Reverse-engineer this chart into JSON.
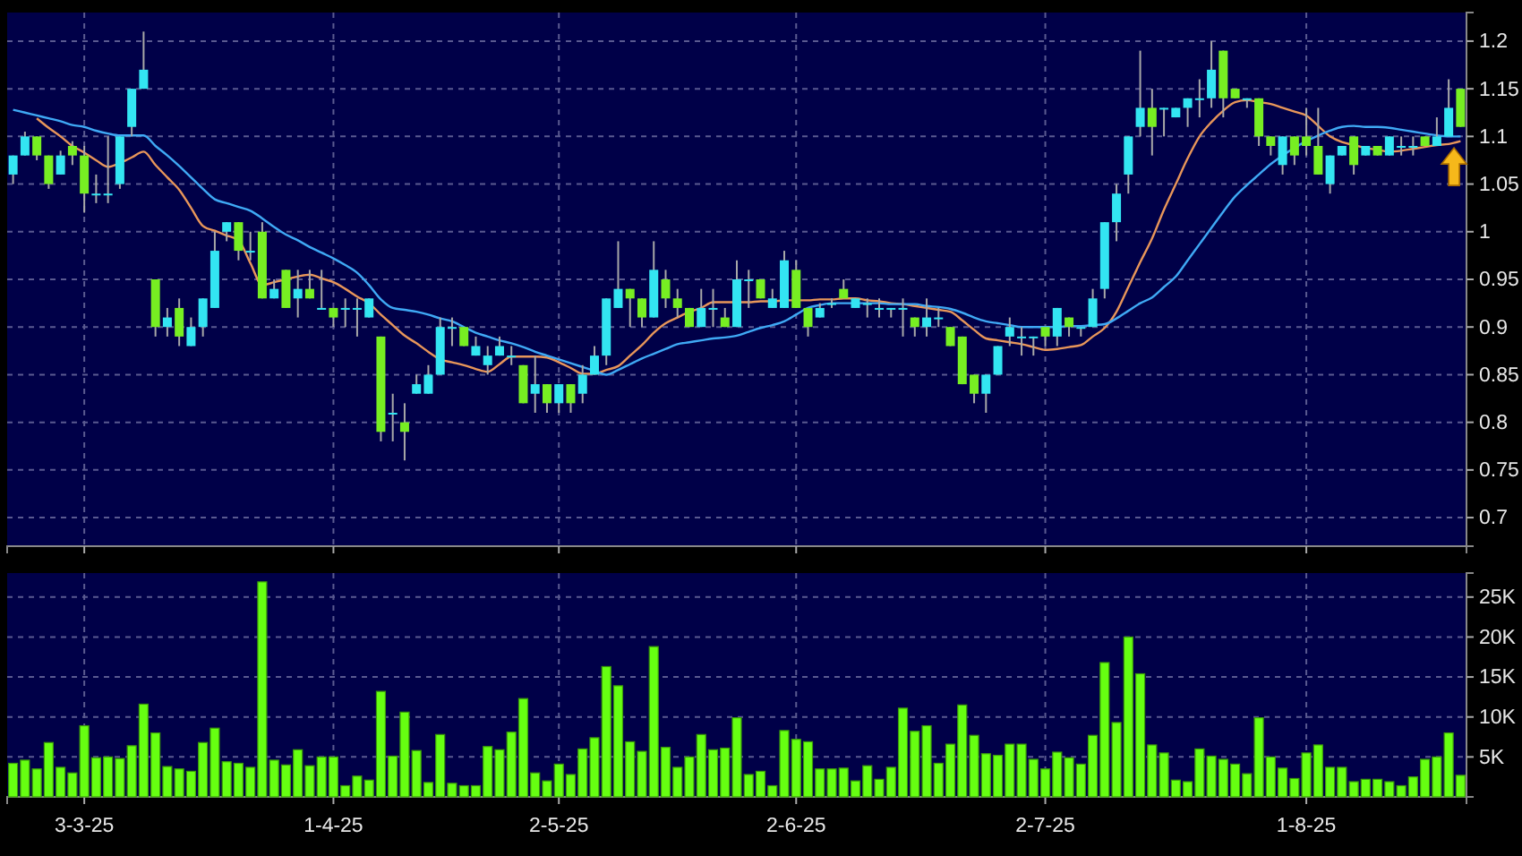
{
  "chart_data": [
    {
      "type": "candlestick",
      "categories": [
        null,
        null,
        null,
        null,
        null,
        null,
        "3-3-25",
        null,
        null,
        null,
        null,
        null,
        null,
        null,
        null,
        null,
        null,
        null,
        null,
        null,
        null,
        null,
        null,
        null,
        null,
        null,
        null,
        "1-4-25",
        null,
        null,
        null,
        null,
        null,
        null,
        null,
        null,
        null,
        null,
        null,
        null,
        null,
        null,
        null,
        null,
        null,
        null,
        "2-5-25",
        null,
        null,
        null,
        null,
        null,
        null,
        null,
        null,
        null,
        null,
        null,
        null,
        null,
        null,
        null,
        null,
        null,
        null,
        null,
        "2-6-25",
        null,
        null,
        null,
        null,
        null,
        null,
        null,
        null,
        null,
        null,
        null,
        null,
        null,
        null,
        null,
        null,
        null,
        null,
        null,
        null,
        "2-7-25",
        null,
        null,
        null,
        null,
        null,
        null,
        null,
        null,
        null,
        null,
        null,
        null,
        null,
        null,
        null,
        null,
        null,
        null,
        null,
        null,
        null,
        "1-8-25",
        null,
        null,
        null,
        null,
        null,
        null,
        null,
        null,
        null,
        null,
        null,
        null,
        null
      ],
      "ylim": [
        0.67,
        1.23
      ],
      "yticks": [
        0.7,
        0.75,
        0.8,
        0.85,
        0.9,
        0.95,
        1,
        1.05,
        1.1,
        1.15,
        1.2
      ],
      "grid": true,
      "tick_labels": "y",
      "series": [
        {
          "type": "candlestick",
          "color": "#33e5f2",
          "ohlc": [
            [
              1.06,
              1.08,
              1.05,
              1.08
            ],
            [
              1.08,
              1.105,
              1.08,
              1.1
            ],
            null,
            null,
            [
              1.06,
              1.085,
              1.06,
              1.08
            ],
            null,
            null,
            [
              1.04,
              1.06,
              1.03,
              1.04
            ],
            [
              1.04,
              1.1,
              1.03,
              1.04
            ],
            [
              1.05,
              1.1,
              1.045,
              1.1
            ],
            [
              1.11,
              1.15,
              1.1,
              1.15
            ],
            [
              1.15,
              1.21,
              1.15,
              1.17
            ],
            null,
            [
              0.9,
              0.92,
              0.89,
              0.91
            ],
            null,
            [
              0.88,
              0.91,
              0.88,
              0.9
            ],
            [
              0.9,
              0.93,
              0.89,
              0.93
            ],
            [
              0.92,
              1.0,
              0.92,
              0.98
            ],
            [
              1.0,
              1.01,
              0.99,
              1.01
            ],
            null,
            [
              0.98,
              1.0,
              0.97,
              0.98
            ],
            null,
            [
              0.93,
              0.95,
              0.93,
              0.94
            ],
            null,
            [
              0.93,
              0.96,
              0.91,
              0.94
            ],
            null,
            [
              0.92,
              0.96,
              0.92,
              0.92
            ],
            null,
            [
              0.92,
              0.93,
              0.9,
              0.92
            ],
            [
              0.92,
              0.93,
              0.89,
              0.92
            ],
            [
              0.91,
              0.93,
              0.91,
              0.93
            ],
            null,
            [
              0.81,
              0.83,
              0.78,
              0.81
            ],
            null,
            [
              0.83,
              0.85,
              0.83,
              0.84
            ],
            [
              0.83,
              0.86,
              0.83,
              0.85
            ],
            [
              0.85,
              0.91,
              0.85,
              0.9
            ],
            [
              0.9,
              0.91,
              0.88,
              0.9
            ],
            null,
            [
              0.87,
              0.89,
              0.87,
              0.88
            ],
            [
              0.86,
              0.88,
              0.85,
              0.87
            ],
            [
              0.87,
              0.89,
              0.87,
              0.88
            ],
            [
              0.87,
              0.88,
              0.86,
              0.87
            ],
            null,
            [
              0.83,
              0.87,
              0.81,
              0.84
            ],
            null,
            [
              0.82,
              0.84,
              0.81,
              0.84
            ],
            null,
            [
              0.83,
              0.86,
              0.82,
              0.85
            ],
            [
              0.85,
              0.88,
              0.85,
              0.87
            ],
            [
              0.87,
              0.93,
              0.86,
              0.93
            ],
            [
              0.92,
              0.99,
              0.92,
              0.94
            ],
            null,
            null,
            [
              0.91,
              0.99,
              0.91,
              0.96
            ],
            null,
            null,
            null,
            [
              0.9,
              0.94,
              0.9,
              0.92
            ],
            [
              0.92,
              0.94,
              0.9,
              0.92
            ],
            null,
            [
              0.9,
              0.97,
              0.9,
              0.95
            ],
            [
              0.95,
              0.96,
              0.92,
              0.95
            ],
            null,
            [
              0.92,
              0.94,
              0.92,
              0.93
            ],
            [
              0.92,
              0.98,
              0.92,
              0.97
            ],
            null,
            null,
            [
              0.91,
              0.925,
              0.91,
              0.92
            ],
            [
              0.925,
              0.93,
              0.92,
              0.925
            ],
            null,
            [
              0.92,
              0.93,
              0.92,
              0.93
            ],
            [
              0.925,
              0.93,
              0.91,
              0.925
            ],
            [
              0.92,
              0.93,
              0.91,
              0.92
            ],
            [
              0.92,
              0.92,
              0.91,
              0.92
            ],
            [
              0.92,
              0.93,
              0.89,
              0.92
            ],
            null,
            [
              0.9,
              0.93,
              0.89,
              0.91
            ],
            [
              0.91,
              0.92,
              0.9,
              0.91
            ],
            null,
            null,
            null,
            [
              0.83,
              0.85,
              0.81,
              0.85
            ],
            [
              0.85,
              0.88,
              0.85,
              0.88
            ],
            [
              0.89,
              0.91,
              0.88,
              0.9
            ],
            [
              0.89,
              0.9,
              0.87,
              0.89
            ],
            [
              0.89,
              0.89,
              0.87,
              0.89
            ],
            null,
            [
              0.89,
              0.92,
              0.88,
              0.92
            ],
            null,
            [
              0.9,
              0.9,
              0.89,
              0.9
            ],
            [
              0.9,
              0.94,
              0.9,
              0.93
            ],
            [
              0.94,
              1.01,
              0.93,
              1.01
            ],
            [
              1.01,
              1.05,
              0.99,
              1.04
            ],
            [
              1.06,
              1.1,
              1.04,
              1.1
            ],
            [
              1.11,
              1.19,
              1.1,
              1.13
            ],
            null,
            [
              1.13,
              1.13,
              1.1,
              1.13
            ],
            [
              1.12,
              1.13,
              1.12,
              1.13
            ],
            [
              1.13,
              1.14,
              1.11,
              1.14
            ],
            [
              1.14,
              1.16,
              1.12,
              1.14
            ],
            [
              1.14,
              1.2,
              1.13,
              1.17
            ],
            null,
            null,
            [
              1.14,
              1.14,
              1.13,
              1.14
            ],
            null,
            null,
            [
              1.07,
              1.1,
              1.06,
              1.1
            ],
            null,
            null,
            null,
            [
              1.05,
              1.08,
              1.04,
              1.08
            ],
            [
              1.08,
              1.09,
              1.08,
              1.09
            ],
            null,
            [
              1.08,
              1.09,
              1.08,
              1.09
            ],
            null,
            [
              1.08,
              1.1,
              1.08,
              1.1
            ],
            [
              1.09,
              1.1,
              1.08,
              1.09
            ],
            [
              1.09,
              1.1,
              1.08,
              1.09
            ],
            null,
            [
              1.09,
              1.12,
              1.09,
              1.1
            ],
            [
              1.1,
              1.16,
              1.1,
              1.13
            ],
            null
          ]
        },
        {
          "type": "candlestick",
          "color": "#77ee22",
          "ohlc": [
            null,
            null,
            [
              1.1,
              1.1,
              1.075,
              1.08
            ],
            [
              1.08,
              1.08,
              1.045,
              1.05
            ],
            null,
            [
              1.09,
              1.095,
              1.07,
              1.08
            ],
            [
              1.08,
              1.09,
              1.02,
              1.04
            ],
            null,
            null,
            null,
            null,
            null,
            [
              0.95,
              0.95,
              0.89,
              0.9
            ],
            null,
            [
              0.92,
              0.93,
              0.88,
              0.89
            ],
            null,
            null,
            null,
            null,
            [
              1.01,
              1.01,
              0.97,
              0.98
            ],
            null,
            [
              1.0,
              1.01,
              0.93,
              0.93
            ],
            null,
            [
              0.96,
              0.96,
              0.92,
              0.92
            ],
            null,
            [
              0.94,
              0.96,
              0.93,
              0.93
            ],
            null,
            [
              0.92,
              0.92,
              0.9,
              0.91
            ],
            null,
            null,
            null,
            [
              0.89,
              0.89,
              0.78,
              0.79
            ],
            null,
            [
              0.8,
              0.82,
              0.76,
              0.79
            ],
            null,
            null,
            null,
            null,
            [
              0.9,
              0.9,
              0.88,
              0.88
            ],
            null,
            null,
            null,
            null,
            [
              0.86,
              0.86,
              0.82,
              0.82
            ],
            null,
            [
              0.84,
              0.84,
              0.81,
              0.82
            ],
            null,
            [
              0.84,
              0.84,
              0.81,
              0.82
            ],
            null,
            null,
            null,
            null,
            [
              0.94,
              0.94,
              0.9,
              0.93
            ],
            [
              0.93,
              0.93,
              0.9,
              0.91
            ],
            null,
            [
              0.95,
              0.96,
              0.92,
              0.93
            ],
            [
              0.93,
              0.94,
              0.91,
              0.92
            ],
            [
              0.92,
              0.92,
              0.9,
              0.9
            ],
            null,
            null,
            [
              0.91,
              0.92,
              0.9,
              0.9
            ],
            null,
            null,
            [
              0.95,
              0.95,
              0.93,
              0.93
            ],
            null,
            null,
            [
              0.96,
              0.97,
              0.92,
              0.92
            ],
            [
              0.92,
              0.92,
              0.89,
              0.9
            ],
            null,
            null,
            [
              0.94,
              0.95,
              0.93,
              0.93
            ],
            null,
            null,
            null,
            null,
            null,
            [
              0.91,
              0.91,
              0.89,
              0.9
            ],
            null,
            null,
            [
              0.9,
              0.9,
              0.88,
              0.88
            ],
            [
              0.89,
              0.89,
              0.84,
              0.84
            ],
            [
              0.85,
              0.85,
              0.82,
              0.83
            ],
            null,
            null,
            null,
            null,
            null,
            [
              0.9,
              0.9,
              0.88,
              0.89
            ],
            null,
            [
              0.91,
              0.91,
              0.89,
              0.9
            ],
            null,
            null,
            null,
            null,
            null,
            null,
            [
              1.13,
              1.15,
              1.08,
              1.11
            ],
            null,
            null,
            null,
            null,
            null,
            [
              1.19,
              1.19,
              1.12,
              1.14
            ],
            [
              1.15,
              1.15,
              1.14,
              1.14
            ],
            null,
            [
              1.14,
              1.14,
              1.09,
              1.1
            ],
            [
              1.1,
              1.1,
              1.08,
              1.09
            ],
            null,
            [
              1.1,
              1.1,
              1.07,
              1.08
            ],
            [
              1.1,
              1.13,
              1.08,
              1.09
            ],
            [
              1.09,
              1.13,
              1.06,
              1.06
            ],
            null,
            null,
            [
              1.1,
              1.1,
              1.06,
              1.07
            ],
            null,
            [
              1.09,
              1.09,
              1.08,
              1.08
            ],
            null,
            null,
            null,
            [
              1.1,
              1.1,
              1.09,
              1.09
            ],
            null,
            null,
            [
              1.15,
              1.15,
              1.11,
              1.11
            ]
          ]
        },
        {
          "type": "line",
          "color": "#e8965a",
          "values": [
            null,
            null,
            1.119,
            1.109,
            1.1,
            1.09,
            1.083,
            1.075,
            1.068,
            1.072,
            1.078,
            1.084,
            1.07,
            1.057,
            1.044,
            1.025,
            1.006,
            1.001,
            0.996,
            0.991,
            0.967,
            0.944,
            0.947,
            0.95,
            0.953,
            0.955,
            0.951,
            0.947,
            0.94,
            0.932,
            0.925,
            0.913,
            0.902,
            0.891,
            0.883,
            0.874,
            0.866,
            0.863,
            0.86,
            0.856,
            0.853,
            0.861,
            0.869,
            0.869,
            0.869,
            0.868,
            0.863,
            0.857,
            0.851,
            0.851,
            0.855,
            0.859,
            0.87,
            0.881,
            0.894,
            0.904,
            0.91,
            0.916,
            0.92,
            0.926,
            0.926,
            0.926,
            0.926,
            0.927,
            0.927,
            0.928,
            0.928,
            0.928,
            0.929,
            0.929,
            0.93,
            0.93,
            0.928,
            0.927,
            0.925,
            0.924,
            0.922,
            0.92,
            0.918,
            0.916,
            0.907,
            0.897,
            0.888,
            0.886,
            0.884,
            0.882,
            0.879,
            0.876,
            0.877,
            0.879,
            0.881,
            0.89,
            0.899,
            0.916,
            0.942,
            0.968,
            0.993,
            1.023,
            1.05,
            1.077,
            1.1,
            1.115,
            1.127,
            1.136,
            1.138,
            1.136,
            1.134,
            1.13,
            1.126,
            1.122,
            1.111,
            1.1,
            1.094,
            1.091,
            1.088,
            1.086,
            1.084,
            1.085,
            1.087,
            1.089,
            1.091,
            1.092,
            1.095
          ]
        },
        {
          "type": "line",
          "color": "#3fa9f5",
          "values": [
            1.128,
            1.125,
            1.122,
            1.119,
            1.116,
            1.112,
            1.11,
            1.106,
            1.103,
            1.101,
            1.101,
            1.101,
            1.09,
            1.08,
            1.069,
            1.057,
            1.045,
            1.034,
            1.03,
            1.026,
            1.022,
            1.014,
            1.005,
            0.997,
            0.991,
            0.984,
            0.978,
            0.972,
            0.965,
            0.957,
            0.944,
            0.929,
            0.92,
            0.918,
            0.916,
            0.913,
            0.909,
            0.906,
            0.9,
            0.894,
            0.89,
            0.886,
            0.883,
            0.879,
            0.874,
            0.87,
            0.866,
            0.862,
            0.858,
            0.854,
            0.85,
            0.855,
            0.861,
            0.867,
            0.872,
            0.877,
            0.882,
            0.884,
            0.886,
            0.888,
            0.889,
            0.891,
            0.895,
            0.899,
            0.902,
            0.906,
            0.913,
            0.92,
            0.923,
            0.925,
            0.925,
            0.925,
            0.925,
            0.925,
            0.924,
            0.924,
            0.924,
            0.922,
            0.921,
            0.919,
            0.915,
            0.91,
            0.906,
            0.904,
            0.902,
            0.9,
            0.9,
            0.9,
            0.9,
            0.901,
            0.901,
            0.902,
            0.903,
            0.909,
            0.917,
            0.925,
            0.931,
            0.942,
            0.953,
            0.97,
            0.987,
            1.004,
            1.021,
            1.037,
            1.049,
            1.06,
            1.071,
            1.08,
            1.088,
            1.095,
            1.101,
            1.106,
            1.11,
            1.111,
            1.11,
            1.11,
            1.109,
            1.107,
            1.105,
            1.103,
            1.101,
            1.1,
            1.1
          ]
        }
      ]
    },
    {
      "type": "bar",
      "categories": [
        null,
        null,
        null,
        null,
        null,
        null,
        "3-3-25",
        null,
        null,
        null,
        null,
        null,
        null,
        null,
        null,
        null,
        null,
        null,
        null,
        null,
        null,
        null,
        null,
        null,
        null,
        null,
        null,
        "1-4-25",
        null,
        null,
        null,
        null,
        null,
        null,
        null,
        null,
        null,
        null,
        null,
        null,
        null,
        null,
        null,
        null,
        null,
        null,
        "2-5-25",
        null,
        null,
        null,
        null,
        null,
        null,
        null,
        null,
        null,
        null,
        null,
        null,
        null,
        null,
        null,
        null,
        null,
        null,
        null,
        "2-6-25",
        null,
        null,
        null,
        null,
        null,
        null,
        null,
        null,
        null,
        null,
        null,
        null,
        null,
        null,
        null,
        null,
        null,
        null,
        null,
        null,
        "2-7-25",
        null,
        null,
        null,
        null,
        null,
        null,
        null,
        null,
        null,
        null,
        null,
        null,
        null,
        null,
        null,
        null,
        null,
        null,
        null,
        null,
        null,
        "1-8-25",
        null,
        null,
        null,
        null,
        null,
        null,
        null,
        null,
        null,
        null,
        null,
        null,
        null
      ],
      "values": [
        4200,
        4600,
        3500,
        6800,
        3700,
        3000,
        8900,
        4900,
        5000,
        4800,
        6400,
        11600,
        8000,
        3800,
        3500,
        3200,
        6800,
        8600,
        4400,
        4200,
        3700,
        26900,
        4600,
        4000,
        5900,
        3900,
        5000,
        5000,
        1400,
        2600,
        2100,
        13200,
        5100,
        10600,
        5800,
        1800,
        7800,
        1700,
        1400,
        1400,
        6300,
        5900,
        8100,
        12300,
        3000,
        2000,
        4100,
        2800,
        6000,
        7400,
        16300,
        13900,
        6900,
        5700,
        18800,
        6200,
        3700,
        5000,
        7800,
        5900,
        6100,
        9900,
        2800,
        3200,
        1400,
        8300,
        7200,
        6900,
        3500,
        3500,
        3600,
        2000,
        3900,
        2200,
        3700,
        11100,
        8200,
        8900,
        4200,
        6600,
        11500,
        7700,
        5400,
        5200,
        6600,
        6600,
        4700,
        3500,
        5600,
        4900,
        4100,
        7700,
        16800,
        9300,
        20000,
        15400,
        6500,
        5500,
        2100,
        1900,
        6000,
        5100,
        4700,
        4100,
        2900,
        9900,
        5000,
        3600,
        2300,
        5500,
        6500,
        3700,
        3700,
        1900,
        2200,
        2200,
        1900,
        1400,
        2500,
        4700,
        5000,
        8000,
        2700
      ],
      "color": "#66ff11",
      "ylim": [
        0,
        28000
      ],
      "yticks": [
        {
          "value": 5000,
          "label": "5K"
        },
        {
          "value": 10000,
          "label": "10K"
        },
        {
          "value": 15000,
          "label": "15K"
        },
        {
          "value": 20000,
          "label": "20K"
        },
        {
          "value": 25000,
          "label": "25K"
        }
      ],
      "grid": true
    }
  ]
}
